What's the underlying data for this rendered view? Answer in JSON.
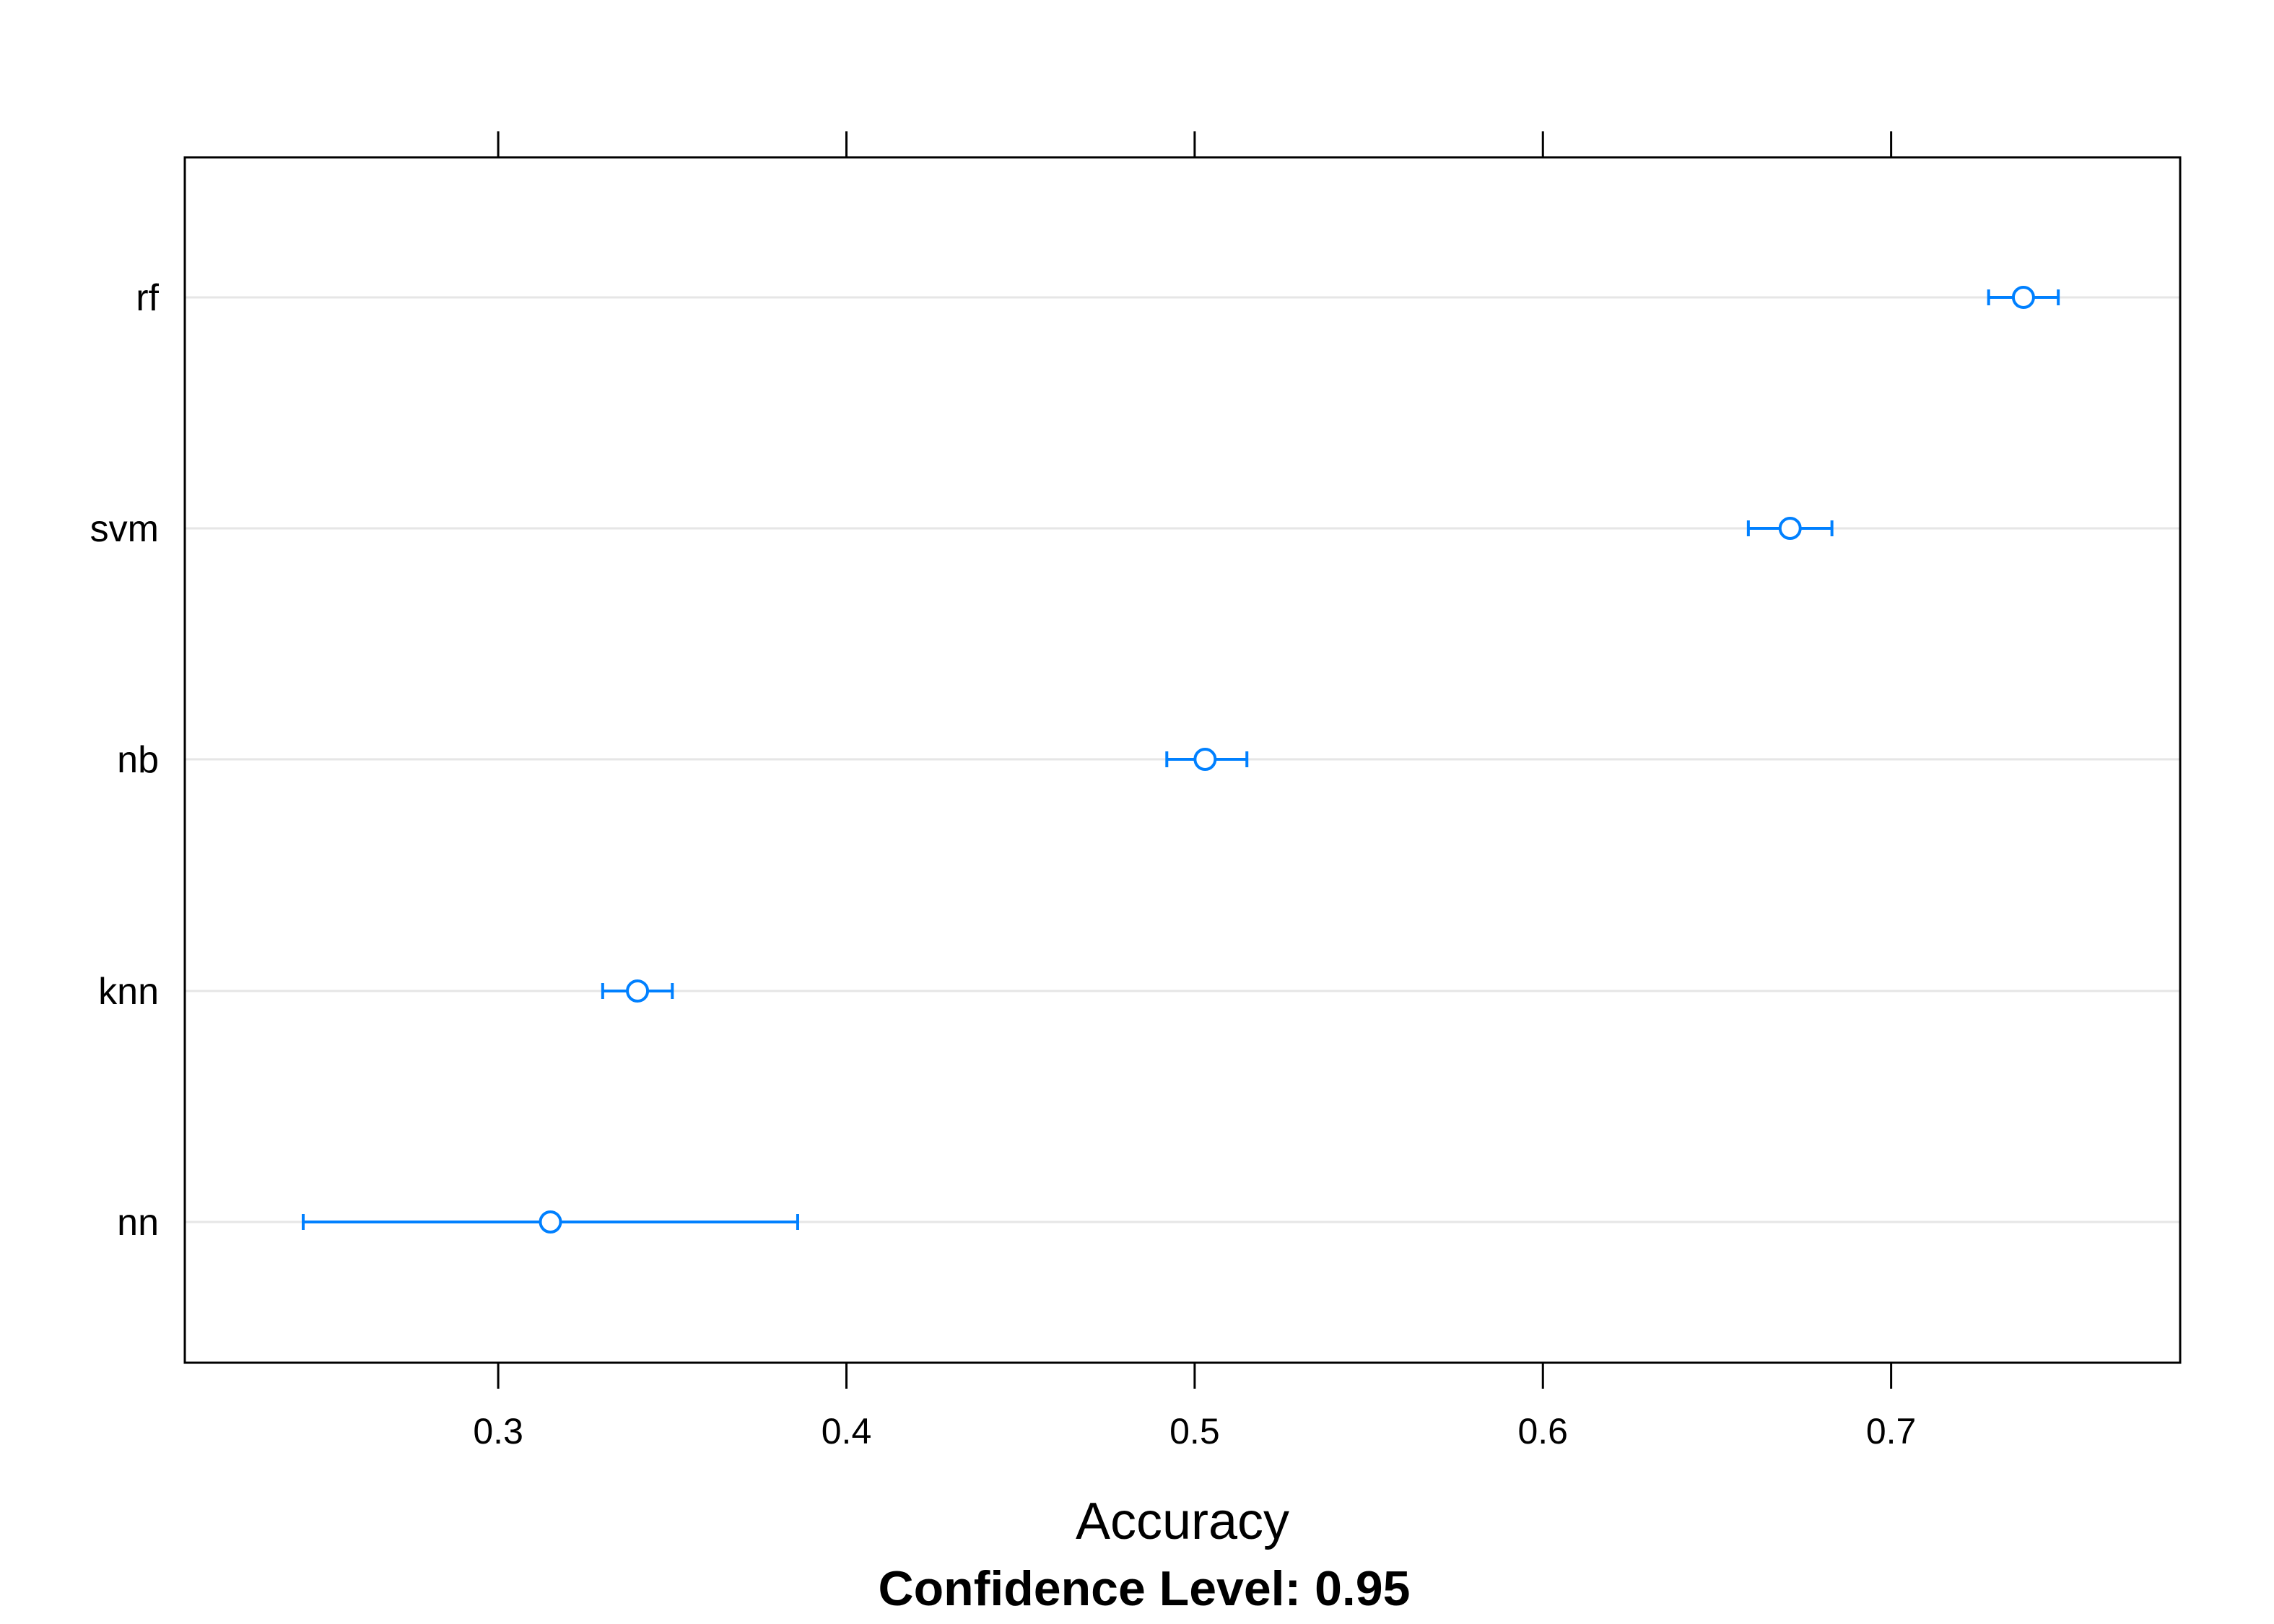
{
  "chart_data": {
    "type": "dotplot-errorbar",
    "xlabel": "Accuracy",
    "subtitle": "Confidence Level: 0.95",
    "xlim": [
      0.21,
      0.783
    ],
    "x_ticks": [
      0.3,
      0.4,
      0.5,
      0.6,
      0.7
    ],
    "x_tick_labels": [
      "0.3",
      "0.4",
      "0.5",
      "0.6",
      "0.7"
    ],
    "grid": "horizontal",
    "color": "#0080ff",
    "categories": [
      "rf",
      "svm",
      "nb",
      "knn",
      "nn"
    ],
    "series": [
      {
        "estimate": 0.738,
        "lower": 0.728,
        "upper": 0.748
      },
      {
        "estimate": 0.671,
        "lower": 0.659,
        "upper": 0.683
      },
      {
        "estimate": 0.503,
        "lower": 0.492,
        "upper": 0.515
      },
      {
        "estimate": 0.34,
        "lower": 0.33,
        "upper": 0.35
      },
      {
        "estimate": 0.315,
        "lower": 0.244,
        "upper": 0.386
      }
    ]
  }
}
